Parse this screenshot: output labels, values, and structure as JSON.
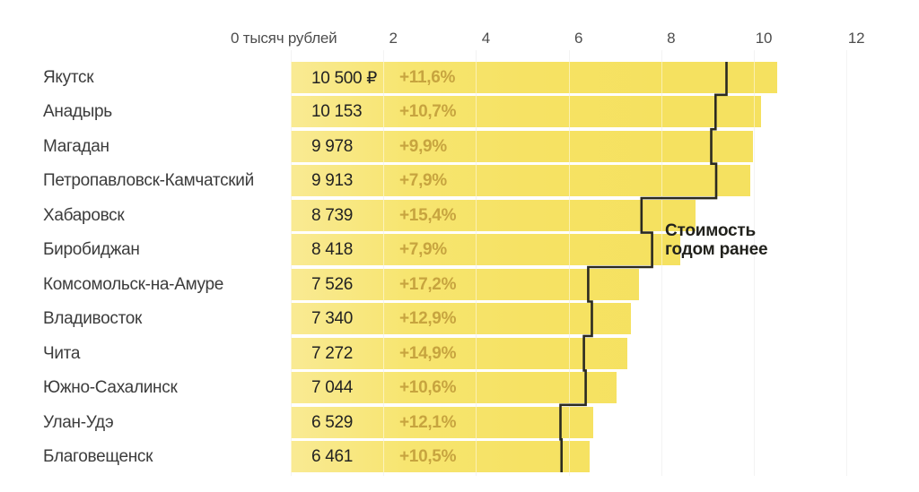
{
  "chart_data": {
    "type": "bar",
    "orientation": "horizontal",
    "x_axis_zero_label": "0 тысяч рублей",
    "x_ticks": [
      {
        "label": "2",
        "thousand": 2
      },
      {
        "label": "4",
        "thousand": 4
      },
      {
        "label": "6",
        "thousand": 6
      },
      {
        "label": "8",
        "thousand": 8
      },
      {
        "label": "10",
        "thousand": 10
      },
      {
        "label": "12",
        "thousand": 12
      }
    ],
    "xlim_thousand": [
      0,
      12
    ],
    "grid": true,
    "annotation": "Стоимость\nгодом ранее",
    "rows": [
      {
        "city": "Якутск",
        "value": 10500,
        "value_label": "10 500 ₽",
        "pct_label": "+11,6%",
        "prev_year": 9409
      },
      {
        "city": "Анадырь",
        "value": 10153,
        "value_label": "10 153",
        "pct_label": "+10,7%",
        "prev_year": 9172
      },
      {
        "city": "Магадан",
        "value": 9978,
        "value_label": "9 978",
        "pct_label": "+9,9%",
        "prev_year": 9079
      },
      {
        "city": "Петропавловск-Камчатский",
        "value": 9913,
        "value_label": "9 913",
        "pct_label": "+7,9%",
        "prev_year": 9187
      },
      {
        "city": "Хабаровск",
        "value": 8739,
        "value_label": "8 739",
        "pct_label": "+15,4%",
        "prev_year": 7573
      },
      {
        "city": "Биробиджан",
        "value": 8418,
        "value_label": "8 418",
        "pct_label": "+7,9%",
        "prev_year": 7802
      },
      {
        "city": "Комсомольск-на-Амуре",
        "value": 7526,
        "value_label": "7 526",
        "pct_label": "+17,2%",
        "prev_year": 6422
      },
      {
        "city": "Владивосток",
        "value": 7340,
        "value_label": "7 340",
        "pct_label": "+12,9%",
        "prev_year": 6501
      },
      {
        "city": "Чита",
        "value": 7272,
        "value_label": "7 272",
        "pct_label": "+14,9%",
        "prev_year": 6329
      },
      {
        "city": "Южно-Сахалинск",
        "value": 7044,
        "value_label": "7 044",
        "pct_label": "+10,6%",
        "prev_year": 6369
      },
      {
        "city": "Улан-Удэ",
        "value": 6529,
        "value_label": "6 529",
        "pct_label": "+12,1%",
        "prev_year": 5824
      },
      {
        "city": "Благовещенск",
        "value": 6461,
        "value_label": "6 461",
        "pct_label": "+10,5%",
        "prev_year": 5847
      }
    ],
    "colors": {
      "bar_fill": "#f6e264",
      "bar_fill_light": "#f9ea93",
      "pct_text": "#c7a43f",
      "value_text": "#222222",
      "city_text": "#3c3c3c",
      "axis_text": "#4d4d4d",
      "prev_year_line": "#2b2a20",
      "gridline": "#e7e7e7",
      "background": "#ffffff"
    }
  }
}
